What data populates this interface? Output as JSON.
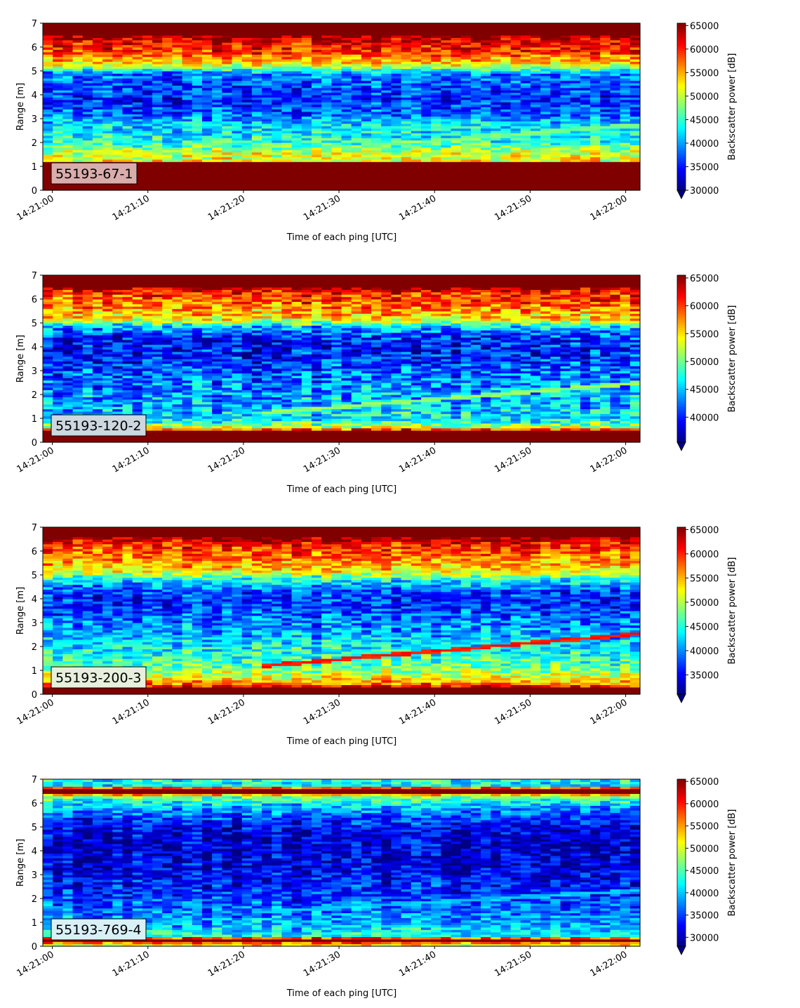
{
  "chart_data": [
    {
      "type": "heatmap",
      "label": "55193-67-1",
      "xlabel": "Time of each ping [UTC]",
      "ylabel": "Range [m]",
      "colorbar_label": "Backscatter power [dB]",
      "colormap": "jet",
      "x_range": [
        "14:21:00",
        "14:22:00"
      ],
      "x_ticks": [
        "14:21:00",
        "14:21:10",
        "14:21:20",
        "14:21:30",
        "14:21:40",
        "14:21:50",
        "14:22:00"
      ],
      "ylim": [
        0,
        7
      ],
      "y_ticks": [
        0,
        1,
        2,
        3,
        4,
        5,
        6,
        7
      ],
      "color_range": [
        30000,
        65500
      ],
      "colorbar_ticks": [
        30000,
        35000,
        40000,
        45000,
        50000,
        55000,
        60000,
        65000
      ],
      "colorbar_extend": "min",
      "label_box_color": "#d9adab",
      "profile": [
        {
          "r": 0.0,
          "v": 65500
        },
        {
          "r": 0.2,
          "v": 65500
        },
        {
          "r": 1.15,
          "v": 65500
        },
        {
          "r": 1.25,
          "v": 52000
        },
        {
          "r": 1.6,
          "v": 50500
        },
        {
          "r": 1.9,
          "v": 46000
        },
        {
          "r": 2.3,
          "v": 43000
        },
        {
          "r": 2.8,
          "v": 42000
        },
        {
          "r": 3.2,
          "v": 38000
        },
        {
          "r": 3.8,
          "v": 35500
        },
        {
          "r": 4.4,
          "v": 37000
        },
        {
          "r": 4.9,
          "v": 39000
        },
        {
          "r": 5.3,
          "v": 53000
        },
        {
          "r": 5.8,
          "v": 59500
        },
        {
          "r": 6.3,
          "v": 61500
        },
        {
          "r": 6.5,
          "v": 65500
        },
        {
          "r": 7.0,
          "v": 65500
        }
      ],
      "streak": {
        "r0": 1.55,
        "r1": 2.75,
        "v": 47500
      }
    },
    {
      "type": "heatmap",
      "label": "55193-120-2",
      "xlabel": "Time of each ping [UTC]",
      "ylabel": "Range [m]",
      "colorbar_label": "Backscatter power [dB]",
      "colormap": "jet",
      "x_range": [
        "14:21:00",
        "14:22:00"
      ],
      "x_ticks": [
        "14:21:00",
        "14:21:10",
        "14:21:20",
        "14:21:30",
        "14:21:40",
        "14:21:50",
        "14:22:00"
      ],
      "ylim": [
        0,
        7
      ],
      "y_ticks": [
        0,
        1,
        2,
        3,
        4,
        5,
        6,
        7
      ],
      "color_range": [
        35500,
        65500
      ],
      "colorbar_ticks": [
        40000,
        45000,
        50000,
        55000,
        60000,
        65000
      ],
      "colorbar_extend": "min",
      "label_box_color": "#cdd7e0",
      "profile": [
        {
          "r": 0.0,
          "v": 65500
        },
        {
          "r": 0.5,
          "v": 65500
        },
        {
          "r": 0.6,
          "v": 53000
        },
        {
          "r": 0.9,
          "v": 47000
        },
        {
          "r": 1.5,
          "v": 44500
        },
        {
          "r": 2.2,
          "v": 43500
        },
        {
          "r": 3.0,
          "v": 42000
        },
        {
          "r": 3.6,
          "v": 40000
        },
        {
          "r": 4.3,
          "v": 39500
        },
        {
          "r": 4.8,
          "v": 44000
        },
        {
          "r": 5.2,
          "v": 55000
        },
        {
          "r": 5.8,
          "v": 58500
        },
        {
          "r": 6.3,
          "v": 61000
        },
        {
          "r": 6.5,
          "v": 65500
        },
        {
          "r": 7.0,
          "v": 65500
        }
      ],
      "streak": {
        "r0": 1.25,
        "r1": 2.5,
        "v": 51000
      }
    },
    {
      "type": "heatmap",
      "label": "55193-200-3",
      "xlabel": "Time of each ping [UTC]",
      "ylabel": "Range [m]",
      "colorbar_label": "Backscatter power [dB]",
      "colormap": "jet",
      "x_range": [
        "14:21:00",
        "14:22:00"
      ],
      "x_ticks": [
        "14:21:00",
        "14:21:10",
        "14:21:20",
        "14:21:30",
        "14:21:40",
        "14:21:50",
        "14:22:00"
      ],
      "ylim": [
        0,
        7
      ],
      "y_ticks": [
        0,
        1,
        2,
        3,
        4,
        5,
        6,
        7
      ],
      "color_range": [
        31000,
        65500
      ],
      "colorbar_ticks": [
        35000,
        40000,
        45000,
        50000,
        55000,
        60000,
        65000
      ],
      "colorbar_extend": "min",
      "label_box_color": "#e6f0dc",
      "profile": [
        {
          "r": 0.0,
          "v": 65500
        },
        {
          "r": 0.25,
          "v": 65500
        },
        {
          "r": 0.4,
          "v": 58000
        },
        {
          "r": 0.7,
          "v": 52000
        },
        {
          "r": 1.2,
          "v": 47000
        },
        {
          "r": 1.8,
          "v": 44500
        },
        {
          "r": 2.5,
          "v": 41500
        },
        {
          "r": 3.2,
          "v": 39000
        },
        {
          "r": 3.8,
          "v": 36500
        },
        {
          "r": 4.3,
          "v": 37500
        },
        {
          "r": 4.8,
          "v": 44000
        },
        {
          "r": 5.2,
          "v": 53500
        },
        {
          "r": 5.7,
          "v": 57000
        },
        {
          "r": 6.3,
          "v": 60000
        },
        {
          "r": 6.6,
          "v": 65500
        },
        {
          "r": 7.0,
          "v": 65500
        }
      ],
      "streak": {
        "r0": 1.2,
        "r1": 2.55,
        "v": 60500
      }
    },
    {
      "type": "heatmap",
      "label": "55193-769-4",
      "xlabel": "Time of each ping [UTC]",
      "ylabel": "Range [m]",
      "colorbar_label": "Backscatter power [dB]",
      "colormap": "jet",
      "x_range": [
        "14:21:00",
        "14:22:00"
      ],
      "x_ticks": [
        "14:21:00",
        "14:21:10",
        "14:21:20",
        "14:21:30",
        "14:21:40",
        "14:21:50",
        "14:22:00"
      ],
      "ylim": [
        0,
        7
      ],
      "y_ticks": [
        0,
        1,
        2,
        3,
        4,
        5,
        6,
        7
      ],
      "color_range": [
        28000,
        65500
      ],
      "colorbar_ticks": [
        30000,
        35000,
        40000,
        45000,
        50000,
        55000,
        60000,
        65000
      ],
      "colorbar_extend": "min",
      "label_box_color": "#d9f0f7",
      "profile": [
        {
          "r": 0.0,
          "v": 52000
        },
        {
          "r": 0.12,
          "v": 52000
        },
        {
          "r": 0.2,
          "v": 65500
        },
        {
          "r": 0.3,
          "v": 65500
        },
        {
          "r": 0.45,
          "v": 43000
        },
        {
          "r": 0.9,
          "v": 39500
        },
        {
          "r": 1.6,
          "v": 36500
        },
        {
          "r": 2.4,
          "v": 34000
        },
        {
          "r": 3.2,
          "v": 32000
        },
        {
          "r": 4.0,
          "v": 31000
        },
        {
          "r": 4.8,
          "v": 31500
        },
        {
          "r": 5.4,
          "v": 35000
        },
        {
          "r": 5.9,
          "v": 40000
        },
        {
          "r": 6.3,
          "v": 47000
        },
        {
          "r": 6.45,
          "v": 65500
        },
        {
          "r": 6.6,
          "v": 65500
        },
        {
          "r": 6.75,
          "v": 42000
        },
        {
          "r": 7.0,
          "v": 43000
        }
      ],
      "streak": {
        "r0": 1.45,
        "r1": 2.35,
        "v": 40000
      }
    }
  ]
}
